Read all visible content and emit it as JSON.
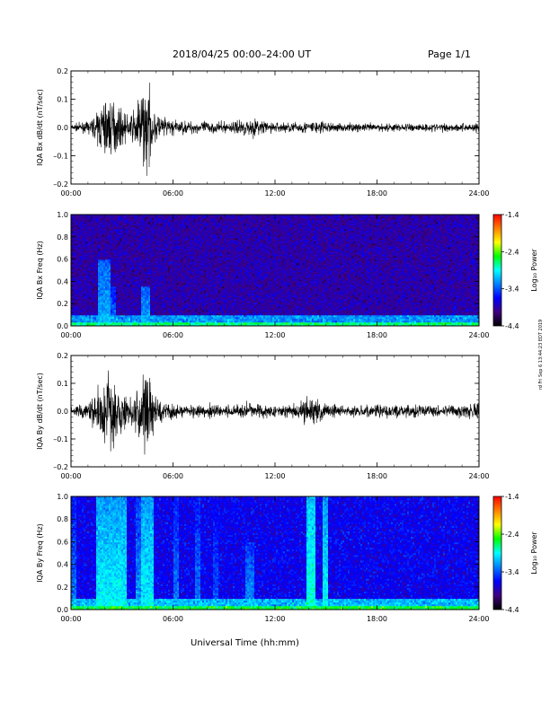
{
  "header": {
    "title": "2018/04/25  00:00–24:00 UT",
    "page": "Page 1/1"
  },
  "footer": {
    "xlabel": "Universal Time (hh:mm)"
  },
  "side_stamp": "rd Fri Sep 6 13:44:23 EDT 2019",
  "colorbar": {
    "label": "Log₁₀ Power",
    "ticks": [
      "-1.4",
      "-2.4",
      "-3.4",
      "-4.4"
    ],
    "colors": [
      "#ff0000",
      "#ff8000",
      "#ffff00",
      "#00ff00",
      "#00ffff",
      "#0080ff",
      "#0000ff",
      "#400080",
      "#000000"
    ]
  },
  "chart_data": [
    {
      "type": "line",
      "ylabel": "IQA Bx dB/dt (nT/sec)",
      "xlim": [
        0,
        24
      ],
      "ylim": [
        -0.2,
        0.2
      ],
      "yticks": [
        "0.2",
        "0.1",
        "0.0",
        "–0.1",
        "–0.2"
      ],
      "xticks": [
        "00:00",
        "06:00",
        "12:00",
        "18:00",
        "24:00"
      ],
      "x_hours": [
        0,
        1,
        1.5,
        2,
        2.2,
        2.5,
        3,
        3.5,
        4,
        4.2,
        4.5,
        4.7,
        5,
        5.5,
        6,
        7,
        8,
        9,
        10,
        10.5,
        11,
        11.5,
        12,
        13,
        14,
        14.5,
        15,
        16,
        17,
        18,
        19,
        20,
        21,
        22,
        23,
        24
      ],
      "amplitude": [
        0.015,
        0.025,
        0.06,
        0.16,
        0.14,
        0.12,
        0.08,
        0.05,
        0.14,
        0.2,
        0.22,
        0.12,
        0.07,
        0.05,
        0.035,
        0.03,
        0.03,
        0.025,
        0.035,
        0.045,
        0.04,
        0.03,
        0.025,
        0.025,
        0.03,
        0.035,
        0.025,
        0.02,
        0.02,
        0.02,
        0.02,
        0.02,
        0.02,
        0.02,
        0.02,
        0.025
      ]
    },
    {
      "type": "heatmap",
      "ylabel": "IQA Bx Freq (Hz)",
      "xlim": [
        0,
        24
      ],
      "ylim": [
        0,
        1
      ],
      "yticks": [
        "1.0",
        "0.8",
        "0.6",
        "0.4",
        "0.2",
        "0.0"
      ],
      "xticks": [
        "00:00",
        "06:00",
        "12:00",
        "18:00",
        "24:00"
      ],
      "zlim": [
        -4.4,
        -1.4
      ],
      "background_level": -3.9,
      "bands": [
        {
          "start": 1.6,
          "end": 2.3,
          "level": -3.1,
          "fmax": 0.6
        },
        {
          "start": 2.3,
          "end": 2.6,
          "level": -3.3,
          "fmax": 0.35
        },
        {
          "start": 4.1,
          "end": 4.7,
          "level": -3.1,
          "fmax": 0.35
        },
        {
          "start": 10.6,
          "end": 11.2,
          "level": -3.5,
          "fmax": 0.12
        }
      ],
      "low_freq_level": -2.7
    },
    {
      "type": "line",
      "ylabel": "IQA By dB/dt (nT/sec)",
      "xlim": [
        0,
        24
      ],
      "ylim": [
        -0.2,
        0.2
      ],
      "yticks": [
        "0.2",
        "0.1",
        "0.0",
        "–0.1",
        "–0.2"
      ],
      "xticks": [
        "00:00",
        "06:00",
        "12:00",
        "18:00",
        "24:00"
      ],
      "x_hours": [
        0,
        0.5,
        1,
        1.5,
        2,
        2.3,
        2.6,
        3,
        3.5,
        4,
        4.3,
        4.6,
        5,
        5.5,
        6,
        7,
        8,
        9,
        10,
        10.5,
        11,
        12,
        13,
        13.5,
        14,
        14.5,
        15,
        16,
        17,
        18,
        19,
        20,
        21,
        22,
        23,
        24
      ],
      "amplitude": [
        0.02,
        0.03,
        0.05,
        0.1,
        0.17,
        0.2,
        0.15,
        0.1,
        0.08,
        0.15,
        0.2,
        0.2,
        0.08,
        0.05,
        0.04,
        0.03,
        0.035,
        0.03,
        0.035,
        0.045,
        0.035,
        0.03,
        0.03,
        0.05,
        0.07,
        0.06,
        0.045,
        0.03,
        0.03,
        0.03,
        0.03,
        0.03,
        0.03,
        0.03,
        0.035,
        0.04
      ]
    },
    {
      "type": "heatmap",
      "ylabel": "IQA By Freq (Hz)",
      "xlim": [
        0,
        24
      ],
      "ylim": [
        0,
        1
      ],
      "yticks": [
        "1.0",
        "0.8",
        "0.6",
        "0.4",
        "0.2",
        "0.0"
      ],
      "xticks": [
        "00:00",
        "06:00",
        "12:00",
        "18:00",
        "24:00"
      ],
      "zlim": [
        -4.4,
        -1.4
      ],
      "background_level": -3.7,
      "bands": [
        {
          "start": 0.0,
          "end": 0.3,
          "level": -3.3,
          "fmax": 1.0
        },
        {
          "start": 1.5,
          "end": 3.3,
          "level": -2.9,
          "fmax": 1.0
        },
        {
          "start": 3.8,
          "end": 4.1,
          "level": -3.2,
          "fmax": 1.0
        },
        {
          "start": 4.1,
          "end": 4.9,
          "level": -2.9,
          "fmax": 1.0
        },
        {
          "start": 6.0,
          "end": 6.3,
          "level": -3.3,
          "fmax": 1.0
        },
        {
          "start": 7.3,
          "end": 7.6,
          "level": -3.3,
          "fmax": 1.0
        },
        {
          "start": 8.4,
          "end": 8.7,
          "level": -3.4,
          "fmax": 1.0
        },
        {
          "start": 10.3,
          "end": 10.8,
          "level": -3.2,
          "fmax": 0.6
        },
        {
          "start": 13.8,
          "end": 14.4,
          "level": -2.8,
          "fmax": 1.0
        },
        {
          "start": 14.8,
          "end": 15.1,
          "level": -2.9,
          "fmax": 1.0
        }
      ],
      "low_freq_level": -2.6
    }
  ]
}
